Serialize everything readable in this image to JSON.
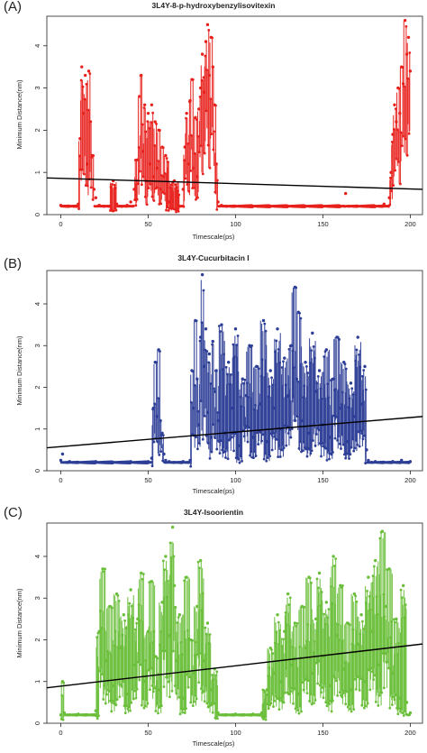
{
  "chart_data": [
    {
      "type": "scatter",
      "panel_label": "(A)",
      "title": "3L4Y-8-p-hydroxybenzylisovitexin",
      "xlabel": "Timescale(ps)",
      "ylabel": "Minimum Distance(nm)",
      "xlim": [
        -8,
        207
      ],
      "ylim": [
        0,
        4.7
      ],
      "xticks": [
        "0",
        "50",
        "100",
        "150",
        "200"
      ],
      "yticks": [
        "0",
        "1",
        "2",
        "3",
        "4"
      ],
      "color": "#e8211d",
      "trendline": {
        "x": [
          -8,
          207
        ],
        "y": [
          0.87,
          0.6
        ]
      },
      "series": [
        {
          "x": [
            0,
            5,
            10,
            11,
            12,
            13,
            14,
            15,
            16,
            17,
            18,
            19,
            20,
            22,
            25,
            28,
            30,
            32,
            35,
            38,
            40,
            42,
            44,
            45,
            46,
            47,
            48,
            49,
            50,
            51,
            52,
            53,
            54,
            55,
            56,
            57,
            58,
            59,
            60,
            62,
            65,
            68,
            70,
            71,
            72,
            73,
            74,
            75,
            76,
            77,
            78,
            79,
            80,
            81,
            82,
            83,
            84,
            85,
            86,
            87,
            88,
            89,
            90,
            92,
            95,
            100,
            110,
            120,
            130,
            140,
            150,
            160,
            163,
            165,
            170,
            180,
            185,
            188,
            189,
            190,
            191,
            192,
            193,
            194,
            195,
            196,
            197,
            198,
            199,
            200
          ],
          "y": [
            0.22,
            0.2,
            0.25,
            1.8,
            3.5,
            2.4,
            3.3,
            1.2,
            3.4,
            2.2,
            1.4,
            0.6,
            0.4,
            0.22,
            0.2,
            0.2,
            0.8,
            0.25,
            0.2,
            0.22,
            0.3,
            0.6,
            1.3,
            2.8,
            3.3,
            1.5,
            2.6,
            0.8,
            2.4,
            1.2,
            2.6,
            0.9,
            2.2,
            1.1,
            2.0,
            0.6,
            1.6,
            0.9,
            1.4,
            0.3,
            0.8,
            0.2,
            0.6,
            1.6,
            2.4,
            1.2,
            2.7,
            3.2,
            1.1,
            2.3,
            0.9,
            2.5,
            3.0,
            3.8,
            2.9,
            4.1,
            4.5,
            3.3,
            4.2,
            3.5,
            2.6,
            1.2,
            0.3,
            0.22,
            0.2,
            0.2,
            0.2,
            0.2,
            0.2,
            0.2,
            0.2,
            0.2,
            0.5,
            0.2,
            0.2,
            0.2,
            0.25,
            0.4,
            1.0,
            1.9,
            2.6,
            2.2,
            3.0,
            2.4,
            3.5,
            3.1,
            4.6,
            3.8,
            4.2,
            3.4
          ]
        }
      ]
    },
    {
      "type": "scatter",
      "panel_label": "(B)",
      "title": "3L4Y-Cucurbitacin I",
      "xlabel": "Timescale(ps)",
      "ylabel": "Minimum Distance(nm)",
      "xlim": [
        -8,
        207
      ],
      "ylim": [
        0,
        4.8
      ],
      "xticks": [
        "0",
        "50",
        "100",
        "150",
        "200"
      ],
      "yticks": [
        "0",
        "1",
        "2",
        "3",
        "4"
      ],
      "color": "#2d3e96",
      "trendline": {
        "x": [
          -8,
          207
        ],
        "y": [
          0.55,
          1.3
        ]
      },
      "series": [
        {
          "x": [
            0,
            1,
            5,
            10,
            20,
            30,
            40,
            50,
            52,
            53,
            54,
            55,
            56,
            57,
            58,
            59,
            60,
            62,
            65,
            70,
            74,
            75,
            76,
            77,
            78,
            79,
            80,
            81,
            82,
            83,
            84,
            85,
            86,
            87,
            88,
            89,
            90,
            92,
            94,
            96,
            98,
            100,
            102,
            104,
            106,
            108,
            110,
            112,
            114,
            116,
            118,
            120,
            122,
            124,
            126,
            128,
            130,
            132,
            134,
            135,
            136,
            138,
            140,
            142,
            144,
            146,
            148,
            150,
            152,
            154,
            156,
            158,
            160,
            162,
            164,
            166,
            168,
            170,
            172,
            174,
            175,
            176,
            178,
            180,
            185,
            190,
            195,
            200
          ],
          "y": [
            0.25,
            0.4,
            0.22,
            0.2,
            0.22,
            0.2,
            0.22,
            0.22,
            0.3,
            1.5,
            2.6,
            1.3,
            2.9,
            1.2,
            0.9,
            0.4,
            0.25,
            0.22,
            0.2,
            0.22,
            0.25,
            2.4,
            1.5,
            3.6,
            2.2,
            1.1,
            3.2,
            4.7,
            2.5,
            3.4,
            1.4,
            2.8,
            0.8,
            3.1,
            1.9,
            2.4,
            1.2,
            3.5,
            0.9,
            2.6,
            1.5,
            3.4,
            0.6,
            2.2,
            1.8,
            3.0,
            0.8,
            2.5,
            1.6,
            3.6,
            0.7,
            2.4,
            1.5,
            3.4,
            1.0,
            2.7,
            1.8,
            3.0,
            4.4,
            2.2,
            3.8,
            1.2,
            2.6,
            0.9,
            3.3,
            1.9,
            2.4,
            1.1,
            2.9,
            0.8,
            2.2,
            3.2,
            1.5,
            2.6,
            0.7,
            2.1,
            1.3,
            3.2,
            1.6,
            2.5,
            0.5,
            0.25,
            0.2,
            0.22,
            0.2,
            0.22,
            0.25,
            0.22
          ]
        }
      ]
    },
    {
      "type": "scatter",
      "panel_label": "(C)",
      "title": "3L4Y-Isoorientin",
      "xlabel": "Timescale(ps)",
      "ylabel": "Minimum Distance(nm)",
      "xlim": [
        -8,
        207
      ],
      "ylim": [
        0,
        4.8
      ],
      "xticks": [
        "0",
        "50",
        "100",
        "150",
        "200"
      ],
      "yticks": [
        "0",
        "1",
        "2",
        "3",
        "4"
      ],
      "color": "#6bbf3b",
      "trendline": {
        "x": [
          -8,
          207
        ],
        "y": [
          0.85,
          1.9
        ]
      },
      "series": [
        {
          "x": [
            0,
            1,
            2,
            5,
            10,
            15,
            20,
            22,
            24,
            26,
            28,
            30,
            32,
            34,
            36,
            38,
            40,
            42,
            44,
            46,
            48,
            50,
            52,
            54,
            56,
            58,
            60,
            62,
            64,
            65,
            66,
            68,
            70,
            72,
            74,
            76,
            78,
            80,
            82,
            84,
            86,
            88,
            90,
            95,
            100,
            105,
            110,
            115,
            118,
            120,
            122,
            124,
            126,
            128,
            130,
            132,
            134,
            136,
            138,
            140,
            142,
            144,
            146,
            148,
            150,
            152,
            154,
            156,
            158,
            160,
            162,
            164,
            166,
            168,
            170,
            172,
            174,
            176,
            178,
            180,
            182,
            184,
            186,
            188,
            190,
            192,
            194,
            196,
            198,
            200
          ],
          "y": [
            0.2,
            1.0,
            0.25,
            0.2,
            0.22,
            0.2,
            0.3,
            2.2,
            3.7,
            1.5,
            2.8,
            0.9,
            3.1,
            1.8,
            2.6,
            0.7,
            3.2,
            1.4,
            2.5,
            3.6,
            1.0,
            2.2,
            3.4,
            1.6,
            0.8,
            2.9,
            4.0,
            2.1,
            4.7,
            3.3,
            1.5,
            2.6,
            0.6,
            3.5,
            2.0,
            1.2,
            2.8,
            3.9,
            1.5,
            2.4,
            0.8,
            1.3,
            0.25,
            0.2,
            0.22,
            0.2,
            0.22,
            0.25,
            0.8,
            1.8,
            1.2,
            2.6,
            1.0,
            2.2,
            3.1,
            1.4,
            2.4,
            0.7,
            2.8,
            1.8,
            3.5,
            1.2,
            2.5,
            3.6,
            1.6,
            2.9,
            0.9,
            4.0,
            2.1,
            3.3,
            1.3,
            2.4,
            0.8,
            3.1,
            1.9,
            2.6,
            1.0,
            3.5,
            2.2,
            3.9,
            1.4,
            4.6,
            2.8,
            3.7,
            1.2,
            2.5,
            0.6,
            3.3,
            0.5,
            0.25
          ]
        }
      ]
    }
  ]
}
